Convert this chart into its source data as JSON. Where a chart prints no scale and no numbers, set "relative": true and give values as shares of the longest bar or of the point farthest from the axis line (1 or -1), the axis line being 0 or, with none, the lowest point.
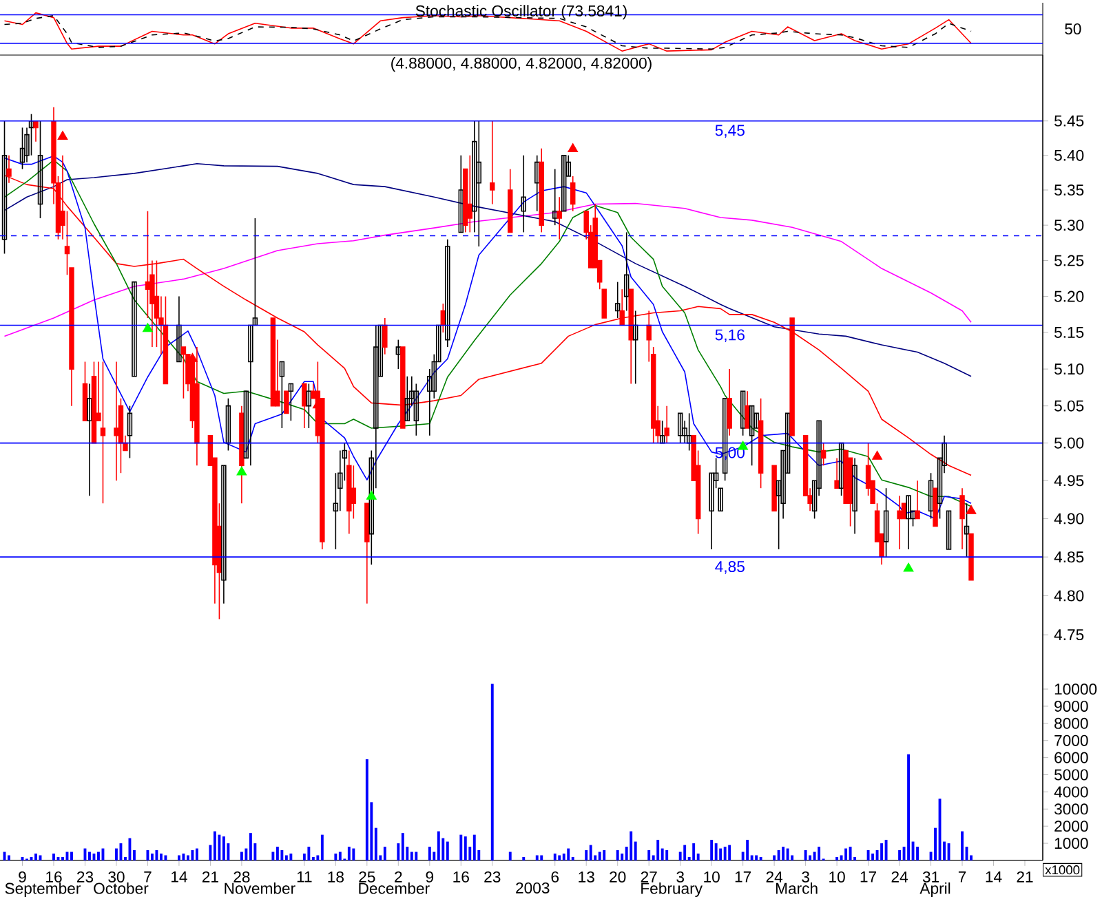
{
  "chart_data": [
    {
      "type": "line",
      "title": "Stochastic Oscillator (73.5841)",
      "x": [
        "2002-09-05",
        "2002-09-09",
        "2002-09-12",
        "2002-09-16",
        "2002-09-19",
        "2002-09-20",
        "2002-09-26",
        "2002-10-01",
        "2002-10-08",
        "2002-10-15",
        "2002-10-17",
        "2002-10-22",
        "2002-10-25",
        "2002-10-31",
        "2002-11-08",
        "2002-11-13",
        "2002-11-19",
        "2002-11-22",
        "2002-11-28",
        "2002-12-03",
        "2002-12-10",
        "2002-12-16",
        "2002-12-20",
        "2003-01-07",
        "2003-01-13",
        "2003-01-21",
        "2003-01-27",
        "2003-01-31",
        "2003-02-10",
        "2003-02-13",
        "2003-02-19",
        "2003-02-25",
        "2003-02-27",
        "2003-03-05",
        "2003-03-11",
        "2003-03-14",
        "2003-03-20",
        "2003-03-26",
        "2003-04-01",
        "2003-04-04",
        "2003-04-09"
      ],
      "series": [
        {
          "color": "#ff0000",
          "values": [
            0.8,
            0.71,
            1,
            0.88,
            0.24,
            0.1,
            0.17,
            0.17,
            0.54,
            0.45,
            0.45,
            0.23,
            0.48,
            0.74,
            0.62,
            0.62,
            0.35,
            0.23,
            0.8,
            0.88,
            0.93,
            0.9,
            0.93,
            0.8,
            0.54,
            0.05,
            0.23,
            0.05,
            0.08,
            0.27,
            0.54,
            0.45,
            0.65,
            0.31,
            0.48,
            0.31,
            0.1,
            0.23,
            0.62,
            0.83,
            0.24
          ]
        },
        {
          "color": "#000000",
          "line_style": "dashed",
          "values": [
            0.71,
            0.74,
            0.86,
            0.93,
            0.48,
            0.26,
            0.14,
            0.17,
            0.45,
            0.5,
            0.45,
            0.3,
            0.36,
            0.65,
            0.64,
            0.6,
            0.45,
            0.3,
            0.6,
            0.83,
            0.9,
            0.9,
            0.9,
            0.86,
            0.65,
            0.18,
            0.12,
            0.12,
            0.1,
            0.14,
            0.45,
            0.5,
            0.54,
            0.48,
            0.45,
            0.38,
            0.18,
            0.14,
            0.48,
            0.74,
            0.54
          ]
        }
      ],
      "xlim": [
        "2002-09-04",
        "2003-04-25"
      ],
      "relative": true,
      "annotations": [
        "50"
      ],
      "ref_lines": [
        {
          "axis": "y",
          "value": 0.24,
          "color": "#0000ff"
        },
        {
          "axis": "y",
          "value": 0.95,
          "color": "#0000ff"
        }
      ],
      "marker": "none"
    },
    {
      "type": "candlestick",
      "title": "(4.88000, 4.88000, 4.82000, 4.82000)",
      "x": [
        "2002-09-05",
        "2002-09-06",
        "2002-09-09",
        "2002-09-10",
        "2002-09-11",
        "2002-09-12",
        "2002-09-13",
        "2002-09-16",
        "2002-09-17",
        "2002-09-18",
        "2002-09-19",
        "2002-09-20",
        "2002-09-23",
        "2002-09-24",
        "2002-09-25",
        "2002-09-26",
        "2002-09-27",
        "2002-09-30",
        "2002-10-01",
        "2002-10-02",
        "2002-10-03",
        "2002-10-04",
        "2002-10-07",
        "2002-10-08",
        "2002-10-09",
        "2002-10-10",
        "2002-10-11",
        "2002-10-14",
        "2002-10-15",
        "2002-10-16",
        "2002-10-17",
        "2002-10-18",
        "2002-10-21",
        "2002-10-22",
        "2002-10-23",
        "2002-10-24",
        "2002-10-25",
        "2002-10-28",
        "2002-10-29",
        "2002-10-30",
        "2002-10-31",
        "2002-11-04",
        "2002-11-05",
        "2002-11-06",
        "2002-11-07",
        "2002-11-08",
        "2002-11-11",
        "2002-11-12",
        "2002-11-13",
        "2002-11-14",
        "2002-11-15",
        "2002-11-18",
        "2002-11-19",
        "2002-11-20",
        "2002-11-21",
        "2002-11-22",
        "2002-11-25",
        "2002-11-26",
        "2002-11-27",
        "2002-11-28",
        "2002-11-29",
        "2002-12-02",
        "2002-12-03",
        "2002-12-04",
        "2002-12-05",
        "2002-12-06",
        "2002-12-09",
        "2002-12-10",
        "2002-12-11",
        "2002-12-12",
        "2002-12-13",
        "2002-12-16",
        "2002-12-17",
        "2002-12-18",
        "2002-12-19",
        "2002-12-20",
        "2002-12-23",
        "2002-12-27",
        "2002-12-30",
        "2003-01-02",
        "2003-01-03",
        "2003-01-06",
        "2003-01-07",
        "2003-01-08",
        "2003-01-09",
        "2003-01-10",
        "2003-01-13",
        "2003-01-14",
        "2003-01-15",
        "2003-01-16",
        "2003-01-17",
        "2003-01-20",
        "2003-01-21",
        "2003-01-22",
        "2003-01-23",
        "2003-01-24",
        "2003-01-27",
        "2003-01-28",
        "2003-01-29",
        "2003-01-30",
        "2003-01-31",
        "2003-02-03",
        "2003-02-04",
        "2003-02-05",
        "2003-02-06",
        "2003-02-07",
        "2003-02-10",
        "2003-02-11",
        "2003-02-12",
        "2003-02-13",
        "2003-02-14",
        "2003-02-17",
        "2003-02-18",
        "2003-02-19",
        "2003-02-20",
        "2003-02-21",
        "2003-02-24",
        "2003-02-25",
        "2003-02-26",
        "2003-02-27",
        "2003-02-28",
        "2003-03-03",
        "2003-03-04",
        "2003-03-05",
        "2003-03-06",
        "2003-03-07",
        "2003-03-10",
        "2003-03-11",
        "2003-03-12",
        "2003-03-13",
        "2003-03-14",
        "2003-03-17",
        "2003-03-18",
        "2003-03-19",
        "2003-03-20",
        "2003-03-21",
        "2003-03-24",
        "2003-03-25",
        "2003-03-26",
        "2003-03-27",
        "2003-03-28",
        "2003-03-31",
        "2003-04-01",
        "2003-04-02",
        "2003-04-03",
        "2003-04-04",
        "2003-04-07",
        "2003-04-08",
        "2003-04-09"
      ],
      "ohlc": [
        [
          5.28,
          5.45,
          5.26,
          5.4
        ],
        [
          5.38,
          5.4,
          5.36,
          5.37
        ],
        [
          5.39,
          5.44,
          5.38,
          5.41
        ],
        [
          5.4,
          5.44,
          5.39,
          5.43
        ],
        [
          5.44,
          5.46,
          5.4,
          5.45
        ],
        [
          5.45,
          5.45,
          5.42,
          5.44
        ],
        [
          5.33,
          5.45,
          5.31,
          5.4
        ],
        [
          5.45,
          5.47,
          5.33,
          5.36
        ],
        [
          5.36,
          5.37,
          5.28,
          5.29
        ],
        [
          5.32,
          5.4,
          5.28,
          5.3
        ],
        [
          5.27,
          5.32,
          5.23,
          5.26
        ],
        [
          5.24,
          5.24,
          5.05,
          5.1
        ],
        [
          5.08,
          5.11,
          5.03,
          5.03
        ],
        [
          5.03,
          5.08,
          4.93,
          5.06
        ],
        [
          5.09,
          5.11,
          5.0,
          5.0
        ],
        [
          5.04,
          5.11,
          5.03,
          5.03
        ],
        [
          5.02,
          5.11,
          4.92,
          5.01
        ],
        [
          5.02,
          5.11,
          4.95,
          5.01
        ],
        [
          5.05,
          5.06,
          4.96,
          5.0
        ],
        [
          5.0,
          5.01,
          4.99,
          4.99
        ],
        [
          5.01,
          5.05,
          4.98,
          5.04
        ],
        [
          5.09,
          5.22,
          5.09,
          5.22
        ],
        [
          5.22,
          5.32,
          5.17,
          5.21
        ],
        [
          5.23,
          5.25,
          5.13,
          5.19
        ],
        [
          5.2,
          5.25,
          5.13,
          5.17
        ],
        [
          5.17,
          5.2,
          5.12,
          5.16
        ],
        [
          5.16,
          5.2,
          5.08,
          5.08
        ],
        [
          5.11,
          5.2,
          5.11,
          5.16
        ],
        [
          5.13,
          5.13,
          5.06,
          5.12
        ],
        [
          5.12,
          5.12,
          5.07,
          5.08
        ],
        [
          5.11,
          5.12,
          5.02,
          5.03
        ],
        [
          5.08,
          5.13,
          4.97,
          5.0
        ],
        [
          5.01,
          5.01,
          4.97,
          4.97
        ],
        [
          4.98,
          4.98,
          4.79,
          4.84
        ],
        [
          4.89,
          4.92,
          4.77,
          4.83
        ],
        [
          4.82,
          4.97,
          4.79,
          4.97
        ],
        [
          5.0,
          5.06,
          4.99,
          5.05
        ],
        [
          5.04,
          5.05,
          4.92,
          4.97
        ],
        [
          4.98,
          5.07,
          4.98,
          5.07
        ],
        [
          5.11,
          5.16,
          4.97,
          5.16
        ],
        [
          5.16,
          5.31,
          5.16,
          5.17
        ],
        [
          5.17,
          5.17,
          5.05,
          5.05
        ],
        [
          5.07,
          5.14,
          5.05,
          5.05
        ],
        [
          5.09,
          5.11,
          5.02,
          5.11
        ],
        [
          5.07,
          5.07,
          5.04,
          5.04
        ],
        [
          5.07,
          5.08,
          5.03,
          5.08
        ],
        [
          5.08,
          5.08,
          5.02,
          5.05
        ],
        [
          5.05,
          5.08,
          5.02,
          5.07
        ],
        [
          5.07,
          5.08,
          5.06,
          5.06
        ],
        [
          5.07,
          5.11,
          5.0,
          5.01
        ],
        [
          5.06,
          5.06,
          4.86,
          4.87
        ],
        [
          4.91,
          4.96,
          4.86,
          4.92
        ],
        [
          4.94,
          4.99,
          4.91,
          4.96
        ],
        [
          4.98,
          5.0,
          4.95,
          4.99
        ],
        [
          4.97,
          4.99,
          4.88,
          4.91
        ],
        [
          4.94,
          4.97,
          4.9,
          4.92
        ],
        [
          4.92,
          4.92,
          4.79,
          4.87
        ],
        [
          4.88,
          4.99,
          4.84,
          4.98
        ],
        [
          5.02,
          5.16,
          4.94,
          5.13
        ],
        [
          5.09,
          5.16,
          5.09,
          5.16
        ],
        [
          5.16,
          5.17,
          5.12,
          5.13
        ],
        [
          5.12,
          5.14,
          5.1,
          5.13
        ],
        [
          5.13,
          5.13,
          5.02,
          5.02
        ],
        [
          5.03,
          5.09,
          5.03,
          5.06
        ],
        [
          5.06,
          5.09,
          5.05,
          5.07
        ],
        [
          5.03,
          5.08,
          5.01,
          5.07
        ],
        [
          5.07,
          5.1,
          5.01,
          5.09
        ],
        [
          5.07,
          5.12,
          5.06,
          5.11
        ],
        [
          5.11,
          5.16,
          5.11,
          5.16
        ],
        [
          5.18,
          5.19,
          5.15,
          5.16
        ],
        [
          5.14,
          5.28,
          5.13,
          5.27
        ],
        [
          5.29,
          5.4,
          5.29,
          5.35
        ],
        [
          5.38,
          5.38,
          5.29,
          5.3
        ],
        [
          5.33,
          5.4,
          5.29,
          5.31
        ],
        [
          5.32,
          5.45,
          5.29,
          5.42
        ],
        [
          5.36,
          5.45,
          5.27,
          5.39
        ],
        [
          5.36,
          5.45,
          5.33,
          5.35
        ],
        [
          5.35,
          5.38,
          5.29,
          5.29
        ],
        [
          5.32,
          5.4,
          5.29,
          5.34
        ],
        [
          5.36,
          5.4,
          5.32,
          5.39
        ],
        [
          5.39,
          5.41,
          5.29,
          5.3
        ],
        [
          5.31,
          5.38,
          5.3,
          5.32
        ],
        [
          5.32,
          5.34,
          5.28,
          5.31
        ],
        [
          5.32,
          5.4,
          5.32,
          5.4
        ],
        [
          5.37,
          5.4,
          5.37,
          5.39
        ],
        [
          5.36,
          5.37,
          5.32,
          5.33
        ],
        [
          5.32,
          5.32,
          5.28,
          5.29
        ],
        [
          5.29,
          5.3,
          5.24,
          5.24
        ],
        [
          5.31,
          5.33,
          5.24,
          5.24
        ],
        [
          5.25,
          5.25,
          5.21,
          5.22
        ],
        [
          5.21,
          5.21,
          5.17,
          5.17
        ],
        [
          5.18,
          5.22,
          5.17,
          5.19
        ],
        [
          5.18,
          5.21,
          5.16,
          5.16
        ],
        [
          5.2,
          5.29,
          5.18,
          5.23
        ],
        [
          5.21,
          5.21,
          5.08,
          5.14
        ],
        [
          5.14,
          5.18,
          5.08,
          5.16
        ],
        [
          5.16,
          5.18,
          5.11,
          5.14
        ],
        [
          5.12,
          5.13,
          5.0,
          5.02
        ],
        [
          5.03,
          5.05,
          5.0,
          5.01
        ],
        [
          5.0,
          5.03,
          5.0,
          5.01
        ],
        [
          5.02,
          5.05,
          5.0,
          5.01
        ],
        [
          5.01,
          5.04,
          5.0,
          5.04
        ],
        [
          5.01,
          5.03,
          5.0,
          5.02
        ],
        [
          5.0,
          5.04,
          4.99,
          5.01
        ],
        [
          5.01,
          5.01,
          4.95,
          4.95
        ],
        [
          4.97,
          4.99,
          4.88,
          4.9
        ],
        [
          4.91,
          4.96,
          4.86,
          4.96
        ],
        [
          4.95,
          4.98,
          4.94,
          4.96
        ],
        [
          4.91,
          4.94,
          4.91,
          4.94
        ],
        [
          4.96,
          5.06,
          4.95,
          5.06
        ],
        [
          5.06,
          5.1,
          5.01,
          5.02
        ],
        [
          5.02,
          5.07,
          5.01,
          5.07
        ],
        [
          5.05,
          5.07,
          5.02,
          5.02
        ],
        [
          5.01,
          5.05,
          4.97,
          5.05
        ],
        [
          5.02,
          5.04,
          5.02,
          5.04
        ],
        [
          5.03,
          5.06,
          4.94,
          4.96
        ],
        [
          4.97,
          4.97,
          4.91,
          4.91
        ],
        [
          4.93,
          4.95,
          4.86,
          4.95
        ],
        [
          4.92,
          4.99,
          4.9,
          4.99
        ],
        [
          4.96,
          5.04,
          4.96,
          5.04
        ],
        [
          5.17,
          5.17,
          5.01,
          5.01
        ],
        [
          5.01,
          5.01,
          4.93,
          4.93
        ],
        [
          4.93,
          4.94,
          4.91,
          4.92
        ],
        [
          4.91,
          4.95,
          4.9,
          4.95
        ],
        [
          4.94,
          5.03,
          4.93,
          5.03
        ],
        [
          4.99,
          5.0,
          4.97,
          4.98
        ],
        [
          4.95,
          4.98,
          4.94,
          4.94
        ],
        [
          4.94,
          5.0,
          4.93,
          5.0
        ],
        [
          4.99,
          4.99,
          4.92,
          4.92
        ],
        [
          4.98,
          4.98,
          4.89,
          4.92
        ],
        [
          4.91,
          4.98,
          4.88,
          4.97
        ],
        [
          4.97,
          5.0,
          4.93,
          4.94
        ],
        [
          4.95,
          4.95,
          4.92,
          4.92
        ],
        [
          4.91,
          4.92,
          4.87,
          4.87
        ],
        [
          4.88,
          4.88,
          4.84,
          4.85
        ],
        [
          4.87,
          4.94,
          4.85,
          4.91
        ],
        [
          4.91,
          4.93,
          4.86,
          4.9
        ],
        [
          4.92,
          4.92,
          4.9,
          4.9
        ],
        [
          4.9,
          4.93,
          4.86,
          4.93
        ],
        [
          4.9,
          4.91,
          4.89,
          4.91
        ],
        [
          4.91,
          4.95,
          4.9,
          4.9
        ],
        [
          4.91,
          4.96,
          4.9,
          4.95
        ],
        [
          4.94,
          4.94,
          4.89,
          4.89
        ],
        [
          4.92,
          4.98,
          4.9,
          4.98
        ],
        [
          4.97,
          5.01,
          4.96,
          5.0
        ],
        [
          4.86,
          4.91,
          4.86,
          4.91
        ],
        [
          4.93,
          4.94,
          4.86,
          4.9
        ],
        [
          4.88,
          4.92,
          4.85,
          4.89
        ],
        [
          4.88,
          4.88,
          4.82,
          4.82
        ]
      ],
      "series": [
        {
          "type": "line",
          "color": "#ff00ff",
          "x": [
            "2002-09-05",
            "2002-09-16",
            "2002-09-25",
            "2002-10-04",
            "2002-10-15",
            "2002-10-24",
            "2002-11-05",
            "2002-11-14",
            "2002-11-22",
            "2002-11-29",
            "2002-12-10",
            "2002-12-19",
            "2003-01-06",
            "2003-01-15",
            "2003-01-24",
            "2003-02-04",
            "2003-02-12",
            "2003-02-19",
            "2003-02-28",
            "2003-03-11",
            "2003-03-20",
            "2003-03-31",
            "2003-04-07",
            "2003-04-09"
          ],
          "values": [
            5.145,
            5.17,
            5.195,
            5.214,
            5.224,
            5.239,
            5.264,
            5.274,
            5.278,
            5.286,
            5.296,
            5.305,
            5.318,
            5.33,
            5.331,
            5.324,
            5.311,
            5.307,
            5.297,
            5.277,
            5.239,
            5.205,
            5.18,
            5.164
          ]
        },
        {
          "type": "line",
          "color": "#000080",
          "x": [
            "2002-09-05",
            "2002-09-10",
            "2002-09-16",
            "2002-09-19",
            "2002-09-25",
            "2002-10-04",
            "2002-10-15",
            "2002-10-18",
            "2002-10-24",
            "2002-11-05",
            "2002-11-14",
            "2002-11-22",
            "2002-11-29",
            "2002-12-10",
            "2002-12-19",
            "2003-01-06",
            "2003-01-15",
            "2003-01-24",
            "2003-02-04",
            "2003-02-12",
            "2003-02-14",
            "2003-02-24",
            "2003-03-06",
            "2003-03-12",
            "2003-03-20",
            "2003-03-28",
            "2003-04-03",
            "2003-04-09"
          ],
          "values": [
            5.321,
            5.34,
            5.355,
            5.365,
            5.368,
            5.374,
            5.385,
            5.388,
            5.385,
            5.384,
            5.374,
            5.358,
            5.355,
            5.34,
            5.327,
            5.305,
            5.277,
            5.246,
            5.214,
            5.189,
            5.183,
            5.158,
            5.148,
            5.145,
            5.133,
            5.123,
            5.108,
            5.09
          ]
        },
        {
          "type": "line",
          "color": "#ff0000",
          "x": [
            "2002-09-05",
            "2002-09-10",
            "2002-09-16",
            "2002-09-19",
            "2002-09-25",
            "2002-09-30",
            "2002-10-04",
            "2002-10-09",
            "2002-10-15",
            "2002-10-18",
            "2002-10-24",
            "2002-10-29",
            "2002-11-05",
            "2002-11-11",
            "2002-11-14",
            "2002-11-20",
            "2002-11-22",
            "2002-11-26",
            "2002-12-03",
            "2002-12-10",
            "2002-12-16",
            "2002-12-20",
            "2003-01-03",
            "2003-01-09",
            "2003-01-15",
            "2003-01-21",
            "2003-01-28",
            "2003-02-03",
            "2003-02-07",
            "2003-02-12",
            "2003-02-14",
            "2003-02-19",
            "2003-02-24",
            "2003-02-28",
            "2003-03-06",
            "2003-03-11",
            "2003-03-17",
            "2003-03-20",
            "2003-03-26",
            "2003-03-31",
            "2003-04-04",
            "2003-04-09"
          ],
          "values": [
            5.371,
            5.358,
            5.352,
            5.327,
            5.283,
            5.246,
            5.242,
            5.246,
            5.252,
            5.239,
            5.214,
            5.195,
            5.17,
            5.151,
            5.133,
            5.101,
            5.076,
            5.054,
            5.051,
            5.057,
            5.064,
            5.086,
            5.108,
            5.145,
            5.161,
            5.17,
            5.177,
            5.18,
            5.186,
            5.183,
            5.175,
            5.175,
            5.164,
            5.151,
            5.126,
            5.101,
            5.07,
            5.032,
            5.007,
            4.985,
            4.97,
            4.957
          ]
        },
        {
          "type": "line",
          "color": "#008000",
          "x": [
            "2002-09-05",
            "2002-09-10",
            "2002-09-16",
            "2002-09-19",
            "2002-09-25",
            "2002-09-30",
            "2002-10-04",
            "2002-10-09",
            "2002-10-15",
            "2002-10-18",
            "2002-10-24",
            "2002-10-29",
            "2002-11-05",
            "2002-11-11",
            "2002-11-14",
            "2002-11-20",
            "2002-11-22",
            "2002-11-26",
            "2002-12-03",
            "2002-12-09",
            "2002-12-13",
            "2002-12-19",
            "2002-12-27",
            "2003-01-03",
            "2003-01-07",
            "2003-01-10",
            "2003-01-15",
            "2003-01-20",
            "2003-01-23",
            "2003-01-28",
            "2003-01-30",
            "2003-02-04",
            "2003-02-07",
            "2003-02-12",
            "2003-02-13",
            "2003-02-19",
            "2003-02-24",
            "2003-02-28",
            "2003-03-06",
            "2003-03-11",
            "2003-03-17",
            "2003-03-20",
            "2003-03-26",
            "2003-03-31",
            "2003-04-04",
            "2003-04-09"
          ],
          "values": [
            5.34,
            5.362,
            5.393,
            5.377,
            5.302,
            5.246,
            5.195,
            5.158,
            5.114,
            5.083,
            5.067,
            5.07,
            5.057,
            5.045,
            5.026,
            5.026,
            5.032,
            5.02,
            5.023,
            5.026,
            5.089,
            5.139,
            5.202,
            5.246,
            5.277,
            5.311,
            5.328,
            5.318,
            5.283,
            5.252,
            5.214,
            5.177,
            5.126,
            5.076,
            5.064,
            5.02,
            5.001,
            4.995,
            4.988,
            4.992,
            4.982,
            4.951,
            4.941,
            4.929,
            4.929,
            4.916
          ]
        },
        {
          "type": "line",
          "color": "#0000ff",
          "x": [
            "2002-09-05",
            "2002-09-09",
            "2002-09-11",
            "2002-09-16",
            "2002-09-18",
            "2002-09-19",
            "2002-09-23",
            "2002-09-25",
            "2002-09-27",
            "2002-10-03",
            "2002-10-07",
            "2002-10-11",
            "2002-10-16",
            "2002-10-18",
            "2002-10-22",
            "2002-10-24",
            "2002-10-29",
            "2002-10-31",
            "2002-11-06",
            "2002-11-11",
            "2002-11-13",
            "2002-11-15",
            "2002-11-20",
            "2002-11-22",
            "2002-11-25",
            "2002-11-27",
            "2002-12-02",
            "2002-12-05",
            "2002-12-10",
            "2002-12-13",
            "2002-12-17",
            "2002-12-20",
            "2002-12-30",
            "2003-01-03",
            "2003-01-08",
            "2003-01-13",
            "2003-01-16",
            "2003-01-21",
            "2003-01-23",
            "2003-01-28",
            "2003-01-30",
            "2003-02-04",
            "2003-02-06",
            "2003-02-10",
            "2003-02-12",
            "2003-02-17",
            "2003-02-21",
            "2003-02-27",
            "2003-03-04",
            "2003-03-06",
            "2003-03-11",
            "2003-03-14",
            "2003-03-19",
            "2003-03-24",
            "2003-03-25",
            "2003-03-28",
            "2003-04-01",
            "2003-04-03",
            "2003-04-07",
            "2003-04-09"
          ],
          "values": [
            5.396,
            5.387,
            5.387,
            5.399,
            5.39,
            5.377,
            5.296,
            5.202,
            5.114,
            5.042,
            5.089,
            5.13,
            5.152,
            5.126,
            5.064,
            5.001,
            4.988,
            5.026,
            5.039,
            5.083,
            5.083,
            5.032,
            5.007,
            4.982,
            4.951,
            4.976,
            5.026,
            5.051,
            5.095,
            5.114,
            5.189,
            5.258,
            5.333,
            5.349,
            5.355,
            5.346,
            5.318,
            5.271,
            5.227,
            5.189,
            5.151,
            5.096,
            5.026,
            4.988,
            4.985,
            4.995,
            5.01,
            5.013,
            4.982,
            4.97,
            4.976,
            4.954,
            4.938,
            4.916,
            4.907,
            4.91,
            4.9,
            4.929,
            4.926,
            4.92
          ]
        },
        {
          "type": "scatter",
          "color": "#ff0000",
          "marker": "triangle",
          "x": [
            "2002-09-18",
            "2002-10-17",
            "2002-11-14",
            "2003-01-10",
            "2003-03-19",
            "2003-04-09"
          ],
          "values": [
            5.427,
            5.114,
            5.051,
            5.409,
            4.982,
            4.91
          ]
        },
        {
          "type": "scatter",
          "color": "#00ff00",
          "marker": "triangle",
          "x": [
            "2002-10-07",
            "2002-10-28",
            "2002-11-26",
            "2003-02-17",
            "2003-03-26"
          ],
          "values": [
            5.155,
            4.961,
            4.929,
            4.995,
            4.835
          ]
        },
        {
          "type": "bar",
          "axis": "y2",
          "color": "#0000ff",
          "values": [
            500,
            300,
            200,
            100,
            200,
            400,
            300,
            400,
            200,
            200,
            500,
            500,
            700,
            500,
            400,
            500,
            700,
            700,
            1000,
            200,
            1300,
            600,
            600,
            400,
            600,
            400,
            300,
            300,
            400,
            300,
            600,
            700,
            900,
            1700,
            1500,
            1400,
            1000,
            500,
            700,
            1600,
            1000,
            500,
            800,
            600,
            300,
            400,
            400,
            800,
            200,
            300,
            1500,
            400,
            500,
            100,
            800,
            700,
            5900,
            3400,
            1900,
            300,
            800,
            1000,
            1600,
            800,
            500,
            500,
            800,
            500,
            1700,
            1300,
            1100,
            1500,
            1400,
            800,
            1500,
            600,
            10300,
            500,
            200,
            300,
            300,
            400,
            300,
            400,
            700,
            200,
            600,
            900,
            300,
            500,
            600,
            600,
            400,
            800,
            1700,
            1100,
            600,
            300,
            1200,
            700,
            600,
            500,
            900,
            200,
            1000,
            400,
            1200,
            1000,
            700,
            800,
            900,
            500,
            1200,
            300,
            300,
            200,
            300,
            600,
            800,
            700,
            300,
            600,
            300,
            500,
            800,
            100,
            200,
            300,
            700,
            800,
            200,
            600,
            400,
            600,
            1000,
            1200,
            600,
            800,
            6200,
            1100,
            800,
            500,
            1900,
            3600,
            1100,
            1000,
            1700,
            800,
            300
          ]
        }
      ],
      "xlim": [
        "2002-09-04",
        "2003-04-25"
      ],
      "xticks": [
        {
          "value": "2002-09-09",
          "label": "9"
        },
        {
          "value": "2002-09-16",
          "label": "16"
        },
        {
          "value": "2002-09-23",
          "label": "23"
        },
        {
          "value": "2002-09-30",
          "label": "30"
        },
        {
          "value": "2002-10-07",
          "label": "7"
        },
        {
          "value": "2002-10-14",
          "label": "14"
        },
        {
          "value": "2002-10-21",
          "label": "21"
        },
        {
          "value": "2002-10-28",
          "label": "28"
        },
        {
          "value": "2002-11-11",
          "label": "11"
        },
        {
          "value": "2002-11-18",
          "label": "18"
        },
        {
          "value": "2002-11-25",
          "label": "25"
        },
        {
          "value": "2002-12-02",
          "label": "2"
        },
        {
          "value": "2002-12-09",
          "label": "9"
        },
        {
          "value": "2002-12-16",
          "label": "16"
        },
        {
          "value": "2002-12-23",
          "label": "23"
        },
        {
          "value": "2003-01-06",
          "label": "6"
        },
        {
          "value": "2003-01-13",
          "label": "13"
        },
        {
          "value": "2003-01-20",
          "label": "20"
        },
        {
          "value": "2003-01-27",
          "label": "27"
        },
        {
          "value": "2003-02-03",
          "label": "3"
        },
        {
          "value": "2003-02-10",
          "label": "10"
        },
        {
          "value": "2003-02-17",
          "label": "17"
        },
        {
          "value": "2003-02-24",
          "label": "24"
        },
        {
          "value": "2003-03-03",
          "label": "3"
        },
        {
          "value": "2003-03-10",
          "label": "10"
        },
        {
          "value": "2003-03-17",
          "label": "17"
        },
        {
          "value": "2003-03-24",
          "label": "24"
        },
        {
          "value": "2003-03-31",
          "label": "31"
        },
        {
          "value": "2003-04-07",
          "label": "7"
        },
        {
          "value": "2003-04-14",
          "label": "14"
        },
        {
          "value": "2003-04-21",
          "label": "21"
        }
      ],
      "x2lim": [
        "2002-09-04",
        "2003-04-25"
      ],
      "x2ticks": [
        {
          "value": "2002-09-05",
          "label": "September"
        },
        {
          "value": "2002-10-01",
          "label": "October"
        },
        {
          "value": "2002-11-01",
          "label": "November"
        },
        {
          "value": "2002-12-01",
          "label": "December"
        },
        {
          "value": "2003-01-01",
          "label": "2003"
        },
        {
          "value": "2003-02-01",
          "label": "February"
        },
        {
          "value": "2003-03-01",
          "label": "March"
        },
        {
          "value": "2003-04-01",
          "label": "April"
        }
      ],
      "ylim": [
        4.472,
        5.547
      ],
      "log": "y",
      "yticks": [
        {
          "value": 4.75,
          "label": "4.75"
        },
        {
          "value": 4.8,
          "label": "4.80"
        },
        {
          "value": 4.85,
          "label": "4.85"
        },
        {
          "value": 4.9,
          "label": "4.90"
        },
        {
          "value": 4.95,
          "label": "4.95"
        },
        {
          "value": 5.0,
          "label": "5.00"
        },
        {
          "value": 5.05,
          "label": "5.05"
        },
        {
          "value": 5.1,
          "label": "5.10"
        },
        {
          "value": 5.15,
          "label": "5.15"
        },
        {
          "value": 5.2,
          "label": "5.20"
        },
        {
          "value": 5.25,
          "label": "5.25"
        },
        {
          "value": 5.3,
          "label": "5.30"
        },
        {
          "value": 5.35,
          "label": "5.35"
        },
        {
          "value": 5.4,
          "label": "5.40"
        },
        {
          "value": 5.45,
          "label": "5.45"
        }
      ],
      "y2lim": [
        0,
        47000
      ],
      "y2ticks": [
        {
          "value": 1000,
          "label": "1000"
        },
        {
          "value": 2000,
          "label": "2000"
        },
        {
          "value": 3000,
          "label": "3000"
        },
        {
          "value": 4000,
          "label": "4000"
        },
        {
          "value": 5000,
          "label": "5000"
        },
        {
          "value": 6000,
          "label": "6000"
        },
        {
          "value": 7000,
          "label": "7000"
        },
        {
          "value": 8000,
          "label": "8000"
        },
        {
          "value": 9000,
          "label": "9000"
        },
        {
          "value": 10000,
          "label": "10000"
        }
      ],
      "ref_lines": [
        {
          "axis": "y",
          "value": 5.45,
          "label": "5,45",
          "color": "#0000ff"
        },
        {
          "axis": "y",
          "value": 5.285,
          "color": "#0000ff",
          "line_style": "dashed"
        },
        {
          "axis": "y",
          "value": 5.16,
          "label": "5,16",
          "color": "#0000ff"
        },
        {
          "axis": "y",
          "value": 5.0,
          "label": "5,00",
          "color": "#0000ff"
        },
        {
          "axis": "y",
          "value": 4.85,
          "label": "4,85",
          "color": "#0000ff"
        }
      ],
      "annotations": [
        "x1000"
      ],
      "marker": "none"
    }
  ]
}
